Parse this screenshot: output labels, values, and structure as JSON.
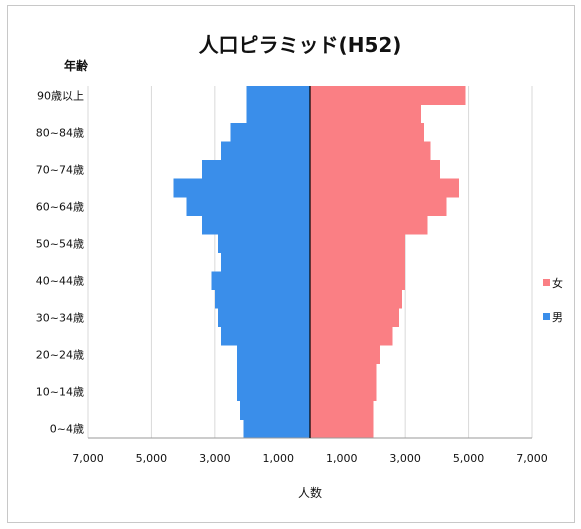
{
  "chart_data": {
    "type": "bar",
    "orientation": "horizontal",
    "title": "人口ピラミッド(H52)",
    "xlabel": "人数",
    "ylabel": "年齢",
    "xlim": [
      -7000,
      7000
    ],
    "x_ticks": [
      -7000,
      -5000,
      -3000,
      -1000,
      1000,
      3000,
      5000,
      7000
    ],
    "x_tick_labels": [
      "7,000",
      "5,000",
      "3,000",
      "1,000",
      "1,000",
      "3,000",
      "5,000",
      "7,000"
    ],
    "y_tick_labels": [
      "0~4歳",
      "10~14歳",
      "20~24歳",
      "30~34歳",
      "40~44歳",
      "50~54歳",
      "60~64歳",
      "70~74歳",
      "80~84歳",
      "90歳以上"
    ],
    "grid": {
      "vertical": true,
      "horizontal": false
    },
    "legend": {
      "position": "right"
    },
    "series": [
      {
        "name": "女",
        "side": "right",
        "color": "#FA7F84",
        "values": [
          2000,
          2000,
          2100,
          2100,
          2200,
          2600,
          2800,
          2900,
          3000,
          3000,
          3000,
          3700,
          4300,
          4700,
          4100,
          3800,
          3600,
          3500,
          4900
        ]
      },
      {
        "name": "男",
        "side": "left",
        "color": "#3A8EEA",
        "values": [
          2100,
          2200,
          2300,
          2300,
          2300,
          2800,
          2900,
          3000,
          3100,
          2800,
          2900,
          3400,
          3900,
          4300,
          3400,
          2800,
          2500,
          2000,
          2000
        ]
      }
    ]
  }
}
